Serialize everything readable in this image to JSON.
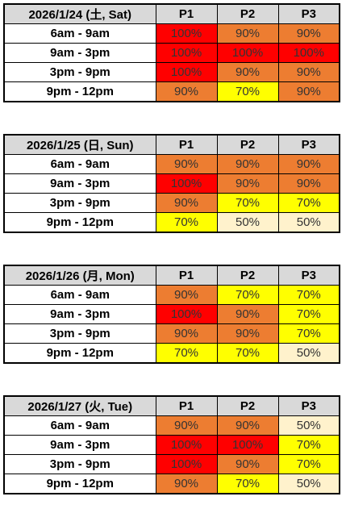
{
  "colors": {
    "100%": "#ff0000",
    "90%": "#ed7d31",
    "70%": "#ffff00",
    "50%": "#fff2cc",
    "header_bg": "#d9d9d9"
  },
  "columns": [
    "P1",
    "P2",
    "P3"
  ],
  "days": [
    {
      "date": "2026/1/24 (土, Sat)",
      "rows": [
        {
          "time": "6am - 9am",
          "values": [
            "100%",
            "90%",
            "90%"
          ]
        },
        {
          "time": "9am - 3pm",
          "values": [
            "100%",
            "100%",
            "100%"
          ]
        },
        {
          "time": "3pm - 9pm",
          "values": [
            "100%",
            "90%",
            "90%"
          ]
        },
        {
          "time": "9pm - 12pm",
          "values": [
            "90%",
            "70%",
            "90%"
          ]
        }
      ]
    },
    {
      "date": "2026/1/25 (日, Sun)",
      "rows": [
        {
          "time": "6am - 9am",
          "values": [
            "90%",
            "90%",
            "90%"
          ]
        },
        {
          "time": "9am - 3pm",
          "values": [
            "100%",
            "90%",
            "90%"
          ]
        },
        {
          "time": "3pm - 9pm",
          "values": [
            "90%",
            "70%",
            "70%"
          ]
        },
        {
          "time": "9pm - 12pm",
          "values": [
            "70%",
            "50%",
            "50%"
          ]
        }
      ]
    },
    {
      "date": "2026/1/26 (月, Mon)",
      "rows": [
        {
          "time": "6am - 9am",
          "values": [
            "90%",
            "70%",
            "70%"
          ]
        },
        {
          "time": "9am - 3pm",
          "values": [
            "100%",
            "90%",
            "70%"
          ]
        },
        {
          "time": "3pm - 9pm",
          "values": [
            "90%",
            "90%",
            "70%"
          ]
        },
        {
          "time": "9pm - 12pm",
          "values": [
            "70%",
            "70%",
            "50%"
          ]
        }
      ]
    },
    {
      "date": "2026/1/27 (火, Tue)",
      "rows": [
        {
          "time": "6am - 9am",
          "values": [
            "90%",
            "90%",
            "50%"
          ]
        },
        {
          "time": "9am - 3pm",
          "values": [
            "100%",
            "100%",
            "70%"
          ]
        },
        {
          "time": "3pm - 9pm",
          "values": [
            "100%",
            "90%",
            "70%"
          ]
        },
        {
          "time": "9pm - 12pm",
          "values": [
            "90%",
            "70%",
            "50%"
          ]
        }
      ]
    }
  ]
}
